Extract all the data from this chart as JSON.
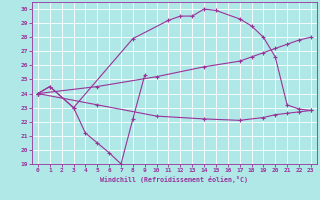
{
  "xlabel": "Windchill (Refroidissement éolien,°C)",
  "bg_color": "#b0e8e8",
  "grid_color": "#ffffff",
  "line_color": "#993399",
  "xlim": [
    -0.5,
    23.5
  ],
  "ylim": [
    19,
    30.5
  ],
  "yticks": [
    19,
    20,
    21,
    22,
    23,
    24,
    25,
    26,
    27,
    28,
    29,
    30
  ],
  "xticks": [
    0,
    1,
    2,
    3,
    4,
    5,
    6,
    7,
    8,
    9,
    10,
    11,
    12,
    13,
    14,
    15,
    16,
    17,
    18,
    19,
    20,
    21,
    22,
    23
  ],
  "curve_top_x": [
    0,
    1,
    3,
    8,
    11,
    12,
    13,
    14,
    15,
    17,
    18,
    19,
    20,
    21,
    22,
    23
  ],
  "curve_top_y": [
    24.0,
    24.5,
    23.0,
    27.9,
    29.2,
    29.5,
    29.5,
    30.0,
    29.9,
    29.3,
    28.8,
    28.0,
    26.6,
    23.2,
    22.9,
    22.8
  ],
  "curve_dip_x": [
    0,
    1,
    3,
    4,
    5,
    6,
    7,
    8,
    9
  ],
  "curve_dip_y": [
    24.0,
    24.5,
    23.0,
    21.2,
    20.5,
    19.8,
    19.0,
    22.2,
    25.3
  ],
  "line_rise_x": [
    0,
    5,
    10,
    14,
    17,
    18,
    19,
    20,
    21,
    22,
    23
  ],
  "line_rise_y": [
    24.0,
    24.5,
    25.2,
    25.9,
    26.3,
    26.6,
    26.9,
    27.2,
    27.5,
    27.8,
    28.0
  ],
  "line_flat_x": [
    0,
    5,
    10,
    14,
    17,
    19,
    20,
    21,
    22,
    23
  ],
  "line_flat_y": [
    24.0,
    23.2,
    22.4,
    22.2,
    22.1,
    22.3,
    22.5,
    22.6,
    22.7,
    22.8
  ]
}
